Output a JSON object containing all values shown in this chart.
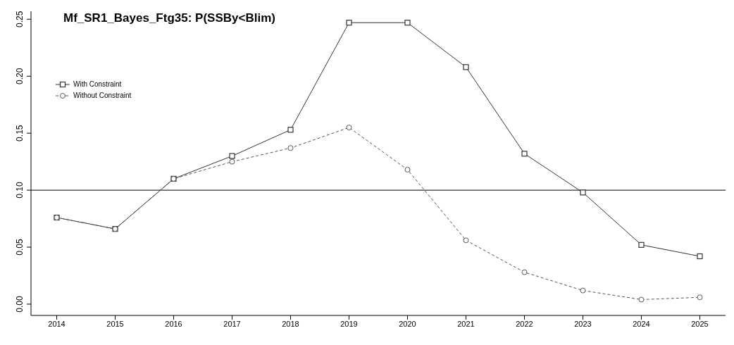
{
  "chart_data": {
    "type": "line",
    "title": "Mf_SR1_Bayes_Ftg35: P(SSBy<Blim)",
    "x": [
      2014,
      2015,
      2016,
      2017,
      2018,
      2019,
      2020,
      2021,
      2022,
      2023,
      2024,
      2025
    ],
    "series": [
      {
        "name": "With Constraint",
        "color": "#333333",
        "marker": "square",
        "line_style": "solid",
        "values": [
          0.076,
          0.066,
          0.11,
          0.13,
          0.153,
          0.247,
          0.247,
          0.208,
          0.132,
          0.098,
          0.052,
          0.042
        ]
      },
      {
        "name": "Without Constraint",
        "color": "#555555",
        "marker": "circle",
        "line_style": "dashed",
        "values": [
          0.076,
          0.066,
          0.11,
          0.125,
          0.137,
          0.155,
          0.118,
          0.056,
          0.028,
          0.012,
          0.004,
          0.006
        ]
      }
    ],
    "xlim": [
      2013.56,
      2025.44
    ],
    "xticks": [
      2014,
      2015,
      2016,
      2017,
      2018,
      2019,
      2020,
      2021,
      2022,
      2023,
      2024,
      2025
    ],
    "ylim": [
      -0.0099,
      0.257
    ],
    "yticks": [
      {
        "value": 0,
        "label": "0.00"
      },
      {
        "value": 0.05,
        "label": "0.05"
      },
      {
        "value": 0.1,
        "label": "0.10"
      },
      {
        "value": 0.15,
        "label": "0.15"
      },
      {
        "value": 0.2,
        "label": "0.20"
      },
      {
        "value": 0.25,
        "label": "0.25"
      }
    ],
    "ref_lines": [
      {
        "axis": "y",
        "value": 0.1,
        "label": null,
        "color": "#000000"
      }
    ],
    "grid": false,
    "legend": "top left"
  }
}
